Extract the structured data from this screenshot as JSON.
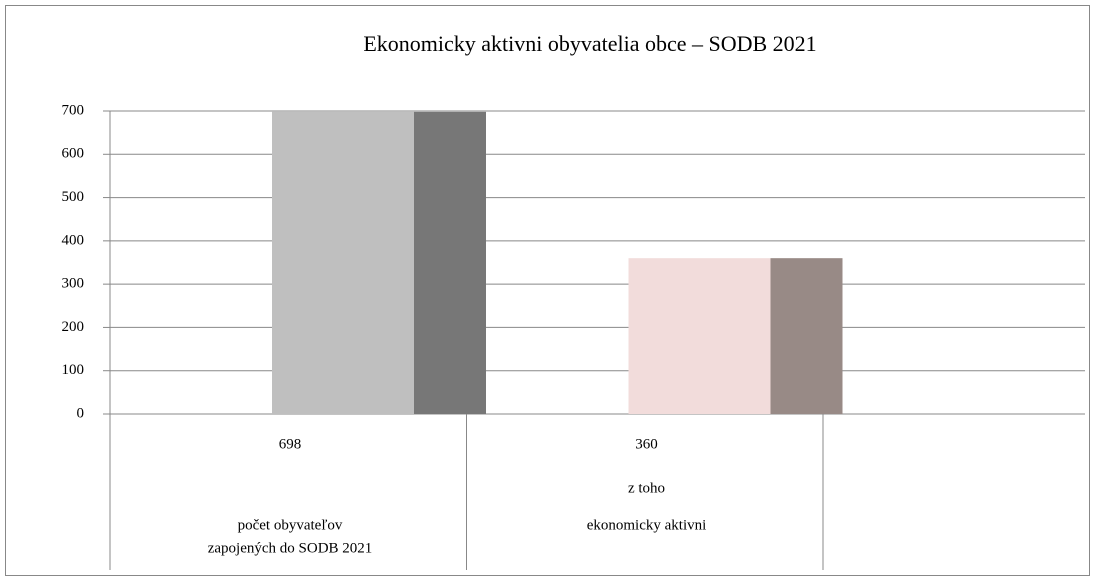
{
  "chart_data": {
    "type": "bar3d",
    "title": "Ekonomicky  aktivni  obyvatelia  obce – SODB 2021",
    "categories": [
      [
        "počet obyvateľov",
        "zapojených do SODB 2021"
      ],
      [
        "z toho",
        "ekonomicky aktivni"
      ]
    ],
    "values": [
      698,
      360
    ],
    "colors": [
      "#bfbfbf",
      "#f2dcdb"
    ],
    "side_colors": [
      "#777777",
      "#988a86"
    ],
    "ylim": [
      0,
      700
    ],
    "yticks": [
      0,
      100,
      200,
      300,
      400,
      500,
      600,
      700
    ],
    "grid": true
  }
}
